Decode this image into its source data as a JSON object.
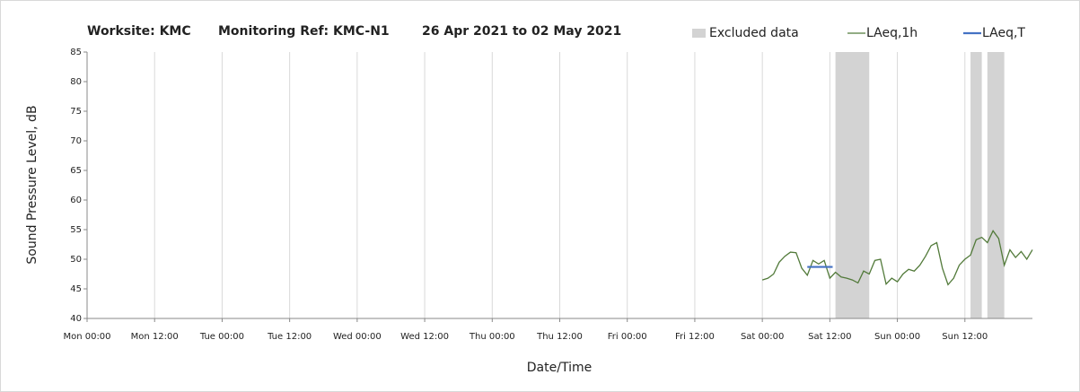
{
  "chart_data": {
    "type": "line",
    "title": [
      "Worksite: KMC",
      "Monitoring Ref: KMC-N1",
      "26 Apr 2021 to 02 May 2021"
    ],
    "xlabel": "Date/Time",
    "ylabel": "Sound Pressure Level, dB",
    "xlim": [
      0,
      168
    ],
    "xticks": [
      {
        "value": 0,
        "label": "Mon 00:00"
      },
      {
        "value": 12,
        "label": "Mon 12:00"
      },
      {
        "value": 24,
        "label": "Tue 00:00"
      },
      {
        "value": 36,
        "label": "Tue 12:00"
      },
      {
        "value": 48,
        "label": "Wed 00:00"
      },
      {
        "value": 60,
        "label": "Wed 12:00"
      },
      {
        "value": 72,
        "label": "Thu 00:00"
      },
      {
        "value": 84,
        "label": "Thu 12:00"
      },
      {
        "value": 96,
        "label": "Fri 00:00"
      },
      {
        "value": 108,
        "label": "Fri 12:00"
      },
      {
        "value": 120,
        "label": "Sat 00:00"
      },
      {
        "value": 132,
        "label": "Sat 12:00"
      },
      {
        "value": 144,
        "label": "Sun 00:00"
      },
      {
        "value": 156,
        "label": "Sun 12:00"
      }
    ],
    "ylim": [
      40,
      85
    ],
    "yticks": [
      40,
      45,
      50,
      55,
      60,
      65,
      70,
      75,
      80,
      85
    ],
    "xgrid": true,
    "excluded": {
      "name": "Excluded data",
      "color": "#d3d3d3",
      "ranges": [
        [
          133,
          139
        ],
        [
          157,
          159
        ],
        [
          160,
          163
        ]
      ]
    },
    "series": [
      {
        "name": "LAeq,1h",
        "color": "#527a3a",
        "x": [
          120,
          121,
          122,
          123,
          124,
          125,
          126,
          127,
          128,
          129,
          130,
          131,
          132,
          133,
          134,
          135,
          136,
          137,
          138,
          139,
          140,
          141,
          142,
          143,
          144,
          145,
          146,
          147,
          148,
          149,
          150,
          151,
          152,
          153,
          154,
          155,
          156,
          157,
          158,
          159,
          160,
          161,
          162,
          163,
          164,
          165,
          166,
          167,
          168
        ],
        "values": [
          46.5,
          46.8,
          47.5,
          49.5,
          50.5,
          51.2,
          51.1,
          48.5,
          47.3,
          49.8,
          49.2,
          49.8,
          46.8,
          47.8,
          47,
          46.8,
          46.5,
          46,
          48,
          47.5,
          49.8,
          50,
          45.8,
          46.8,
          46.2,
          47.5,
          48.3,
          48,
          49,
          50.5,
          52.3,
          52.8,
          48.5,
          45.7,
          46.8,
          49,
          50,
          50.7,
          53.3,
          53.7,
          52.8,
          54.8,
          53.5,
          49,
          51.6,
          50.3,
          51.3,
          50,
          51.6
        ]
      },
      {
        "name": "LAeq,T",
        "color": "#4472c4",
        "x": [
          128,
          132.5
        ],
        "values": [
          48.7,
          48.7
        ]
      }
    ]
  }
}
